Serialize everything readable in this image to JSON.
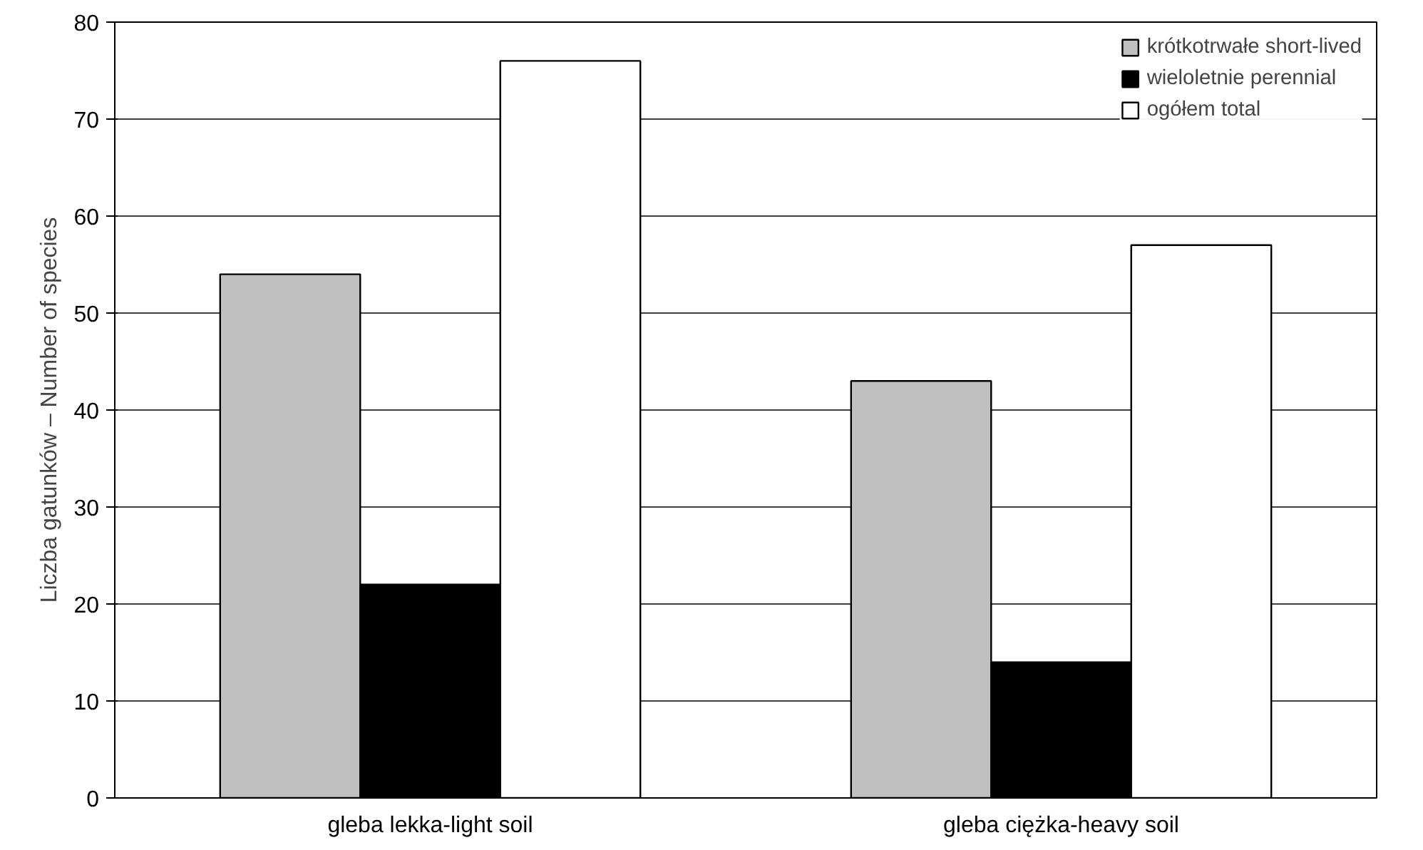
{
  "chart_data": {
    "type": "bar",
    "ylabel": "Liczba gatunków – Number of species",
    "categories": [
      "gleba lekka-light soil",
      "gleba ciężka-heavy soil"
    ],
    "series": [
      {
        "name": "krótkotrwałe short-lived",
        "color": "#c0c0c0",
        "values": [
          54,
          43
        ]
      },
      {
        "name": "wieloletnie perennial",
        "color": "#000000",
        "values": [
          22,
          14
        ]
      },
      {
        "name": "ogółem total",
        "color": "#ffffff",
        "values": [
          76,
          57
        ]
      }
    ],
    "ylim": [
      0,
      80
    ],
    "yticks": [
      0,
      10,
      20,
      30,
      40,
      50,
      60,
      70,
      80
    ],
    "grid": "y",
    "legend": "top right"
  }
}
